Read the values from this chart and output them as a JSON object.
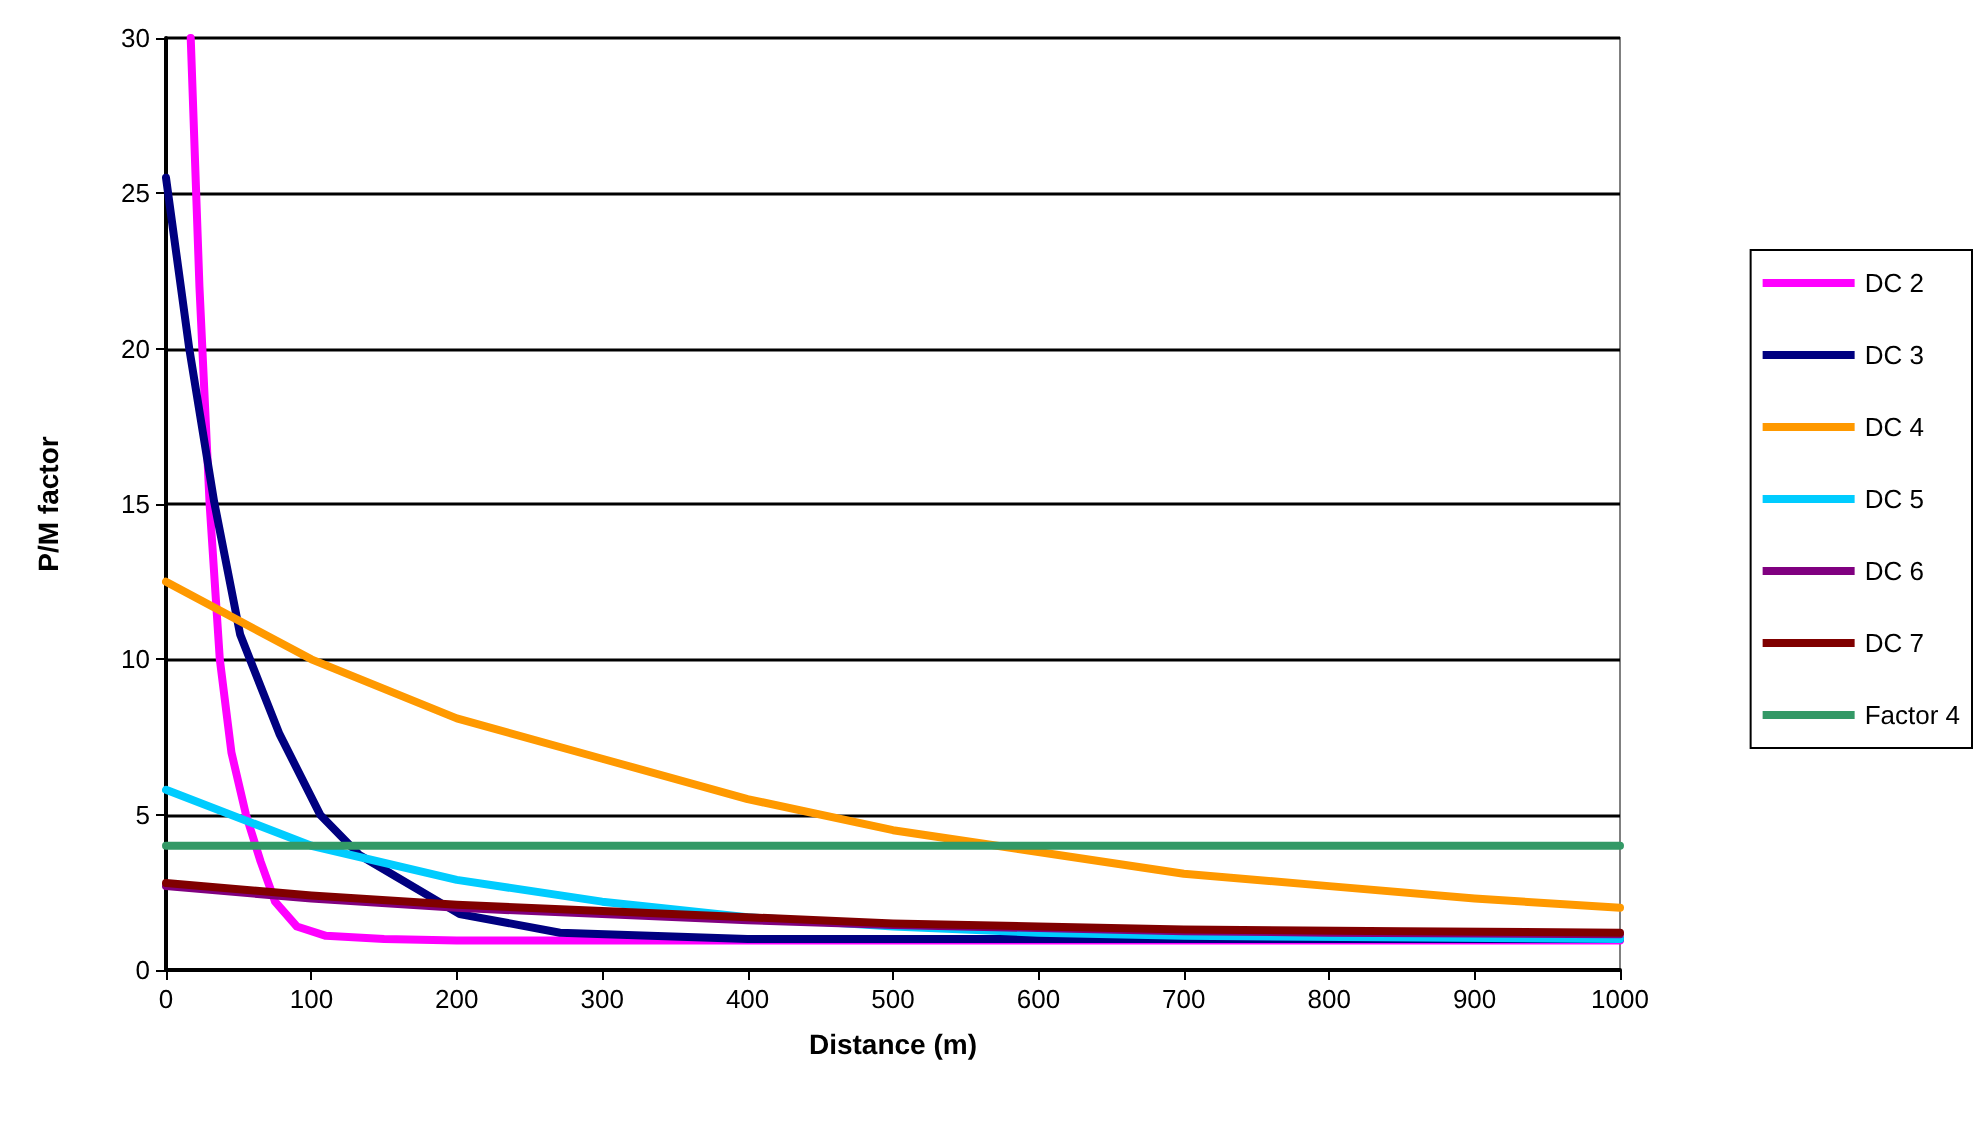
{
  "chart_data": {
    "type": "line",
    "xlabel": "Distance (m)",
    "ylabel": "P/M factor",
    "xlim": [
      0,
      1000
    ],
    "xticks": [
      0,
      100,
      200,
      300,
      400,
      500,
      600,
      700,
      800,
      900,
      1000
    ],
    "ylim": [
      0,
      30
    ],
    "yticks": [
      0,
      5,
      10,
      15,
      20,
      25,
      30
    ],
    "grid": "y",
    "legend": "right",
    "marker": "none",
    "line_style": "solid",
    "series": [
      {
        "name": "DC 2",
        "color": "#ff00ff",
        "x": [
          17,
          23,
          30,
          37,
          45,
          55,
          65,
          75,
          90,
          110,
          150,
          200,
          400,
          1000
        ],
        "values": [
          30,
          22,
          15,
          10,
          7,
          5,
          3.5,
          2.2,
          1.4,
          1.1,
          1.0,
          0.95,
          0.95,
          0.95
        ]
      },
      {
        "name": "DC 3",
        "color": "#000080",
        "x": [
          0,
          16,
          33,
          51,
          78,
          106,
          133,
          202,
          271,
          400,
          1000
        ],
        "values": [
          25.5,
          20,
          15.1,
          10.8,
          7.6,
          5.0,
          3.7,
          1.8,
          1.2,
          1.0,
          1.0
        ]
      },
      {
        "name": "DC 4",
        "color": "#ff9900",
        "x": [
          0,
          100,
          200,
          300,
          400,
          500,
          600,
          700,
          800,
          900,
          1000
        ],
        "values": [
          12.5,
          10,
          8.1,
          6.8,
          5.5,
          4.5,
          3.8,
          3.1,
          2.7,
          2.3,
          2.0
        ]
      },
      {
        "name": "DC 5",
        "color": "#00ccff",
        "x": [
          0,
          100,
          200,
          300,
          400,
          500,
          600,
          700,
          1000
        ],
        "values": [
          5.8,
          4.0,
          2.9,
          2.2,
          1.7,
          1.4,
          1.2,
          1.1,
          1.0
        ]
      },
      {
        "name": "DC 6",
        "color": "#800080",
        "x": [
          0,
          100,
          200,
          300,
          400,
          500,
          600,
          700,
          800,
          1000
        ],
        "values": [
          2.7,
          2.3,
          2.0,
          1.8,
          1.6,
          1.45,
          1.35,
          1.25,
          1.2,
          1.15
        ]
      },
      {
        "name": "DC 7",
        "color": "#800000",
        "x": [
          0,
          100,
          200,
          300,
          400,
          500,
          600,
          700,
          850,
          1000
        ],
        "values": [
          2.8,
          2.4,
          2.1,
          1.9,
          1.7,
          1.5,
          1.4,
          1.3,
          1.25,
          1.2
        ]
      },
      {
        "name": "Factor 4",
        "color": "#339966",
        "x": [
          0,
          1000
        ],
        "values": [
          4,
          4
        ]
      }
    ]
  }
}
